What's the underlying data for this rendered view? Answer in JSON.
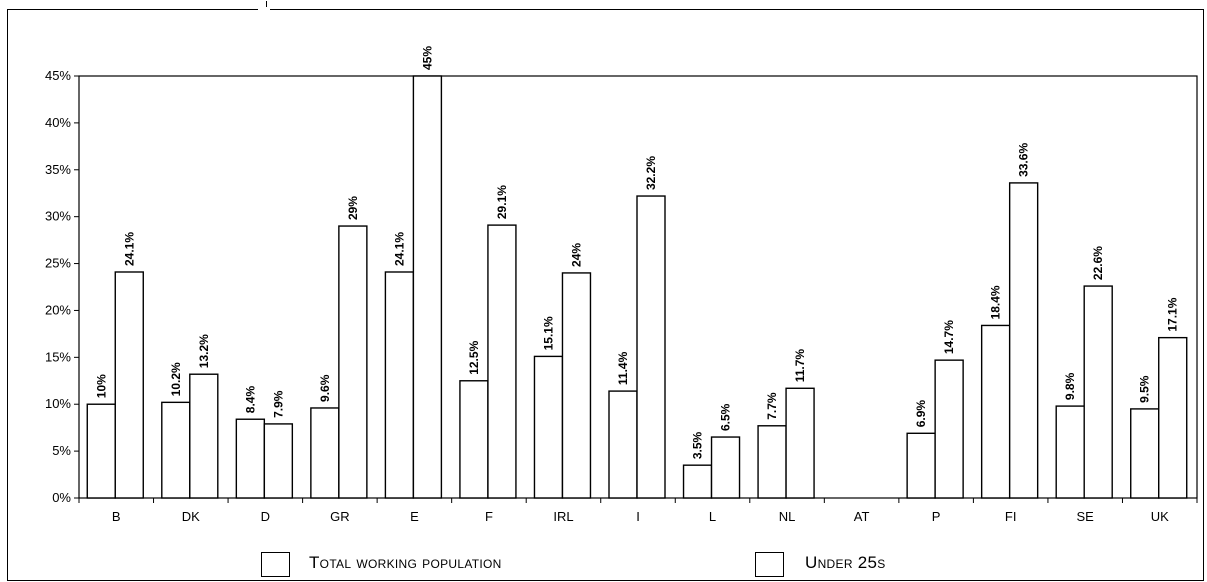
{
  "chart_data": {
    "type": "bar",
    "categories": [
      "B",
      "DK",
      "D",
      "GR",
      "E",
      "F",
      "IRL",
      "I",
      "L",
      "NL",
      "AT",
      "P",
      "FI",
      "SE",
      "UK"
    ],
    "series": [
      {
        "name": "Total working population",
        "values": [
          10,
          10.2,
          8.4,
          9.6,
          24.1,
          12.5,
          15.1,
          11.4,
          3.5,
          7.7,
          null,
          6.9,
          18.4,
          9.8,
          9.5
        ],
        "labels": [
          "10%",
          "10.2%",
          "8.4%",
          "9.6%",
          "24.1%",
          "12.5%",
          "15.1%",
          "11.4%",
          "3.5%",
          "7.7%",
          "",
          "6.9%",
          "18.4%",
          "9.8%",
          "9.5%"
        ]
      },
      {
        "name": "Under 25s",
        "values": [
          24.1,
          13.2,
          7.9,
          29,
          45,
          29.1,
          24,
          32.2,
          6.5,
          11.7,
          null,
          14.7,
          33.6,
          22.6,
          17.1
        ],
        "labels": [
          "24.1%",
          "13.2%",
          "7.9%",
          "29%",
          "45%",
          "29.1%",
          "24%",
          "32.2%",
          "6.5%",
          "11.7%",
          "",
          "14.7%",
          "33.6%",
          "22.6%",
          "17.1%"
        ]
      }
    ],
    "ylim": [
      0,
      45
    ],
    "yticks": [
      "0%",
      "5%",
      "10%",
      "15%",
      "20%",
      "25%",
      "30%",
      "35%",
      "40%",
      "45%"
    ],
    "ytick_values": [
      0,
      5,
      10,
      15,
      20,
      25,
      30,
      35,
      40,
      45
    ],
    "title": "",
    "xlabel": "",
    "ylabel": "",
    "legend": "bottom",
    "grid": false
  },
  "legend": {
    "total_label": "Total working population",
    "under25_label": "Under 25s"
  }
}
